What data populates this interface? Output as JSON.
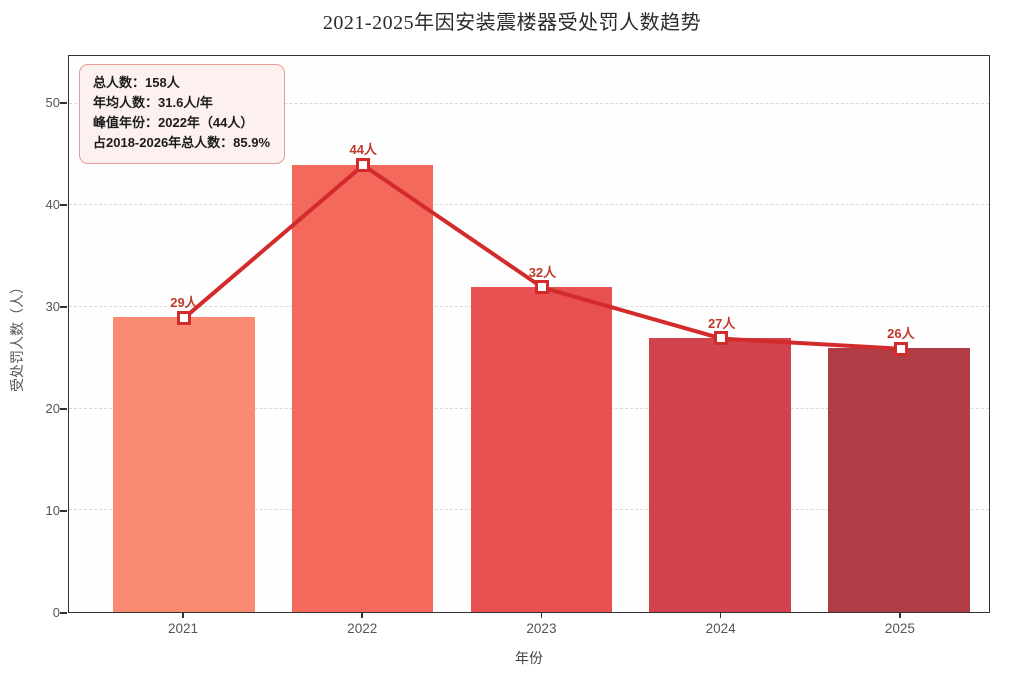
{
  "chart_data": {
    "type": "bar",
    "title": "2021-2025年因安装震楼器受处罚人数趋势",
    "xlabel": "年份",
    "ylabel": "受处罚人数（人）",
    "categories": [
      "2021",
      "2022",
      "2023",
      "2024",
      "2025"
    ],
    "bars": {
      "values": [
        29,
        44,
        32,
        27,
        26
      ],
      "colors": [
        "#fa8a72",
        "#f3695c",
        "#e85052",
        "#d2434e",
        "#b03c45"
      ]
    },
    "line": {
      "values": [
        29,
        44,
        32,
        27,
        26
      ],
      "color": "#d32b2b",
      "marker": "square-white-filled"
    },
    "point_labels": [
      "29人",
      "44人",
      "32人",
      "27人",
      "26人"
    ],
    "ylim": [
      0,
      54.7
    ],
    "yticks": [
      0,
      10,
      20,
      30,
      40,
      50
    ],
    "grid": "dashed-horizontal",
    "legend": "none",
    "annotation_lines": [
      "总人数：158人",
      "年均人数：31.6人/年",
      "峰值年份：2022年（44人）",
      "占2018-2026年总人数：85.9%"
    ]
  }
}
